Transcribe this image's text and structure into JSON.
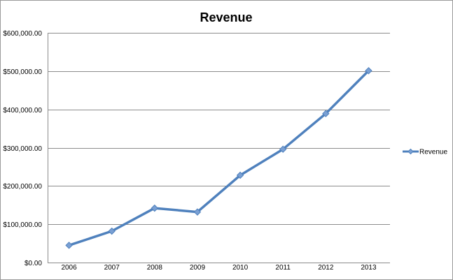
{
  "chart_data": {
    "type": "line",
    "title": "Revenue",
    "xlabel": "",
    "ylabel": "",
    "categories": [
      "2006",
      "2007",
      "2008",
      "2009",
      "2010",
      "2011",
      "2012",
      "2013"
    ],
    "series": [
      {
        "name": "Revenue",
        "values": [
          45000,
          82000,
          142000,
          132000,
          228000,
          296000,
          389000,
          501000
        ],
        "color": "#4f81bd",
        "marker_color": "#7aa0d4"
      }
    ],
    "ylim": [
      0,
      600000
    ],
    "y_ticks": [
      0,
      100000,
      200000,
      300000,
      400000,
      500000,
      600000
    ],
    "y_tick_labels": [
      "$0.00",
      "$100,000.00",
      "$200,000.00",
      "$300,000.00",
      "$400,000.00",
      "$500,000.00",
      "$600,000.00"
    ],
    "grid": true,
    "legend_position": "right",
    "gridline_color": "#8c8c8c"
  }
}
